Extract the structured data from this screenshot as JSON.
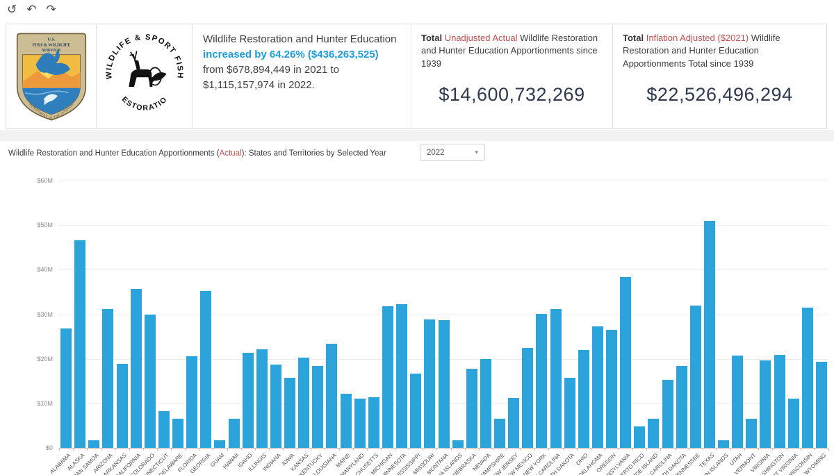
{
  "colors": {
    "bar": "#2BA3DB",
    "accent_blue": "#1E9CD7",
    "accent_red": "#C0504D",
    "kpi_value_text": "#2E3A4E"
  },
  "toolbar": {
    "reset_glyph": "↺",
    "undo_glyph": "↶",
    "redo_glyph": "↷"
  },
  "logos": {
    "usfws": {
      "line1": "U.S.",
      "line2": "FISH & WILDLIFE",
      "line3": "SERVICE",
      "arc": "DEPARTMENT OF THE INTERIOR"
    },
    "wsfr": {
      "top_arc": "WILDLIFE & SPORT FISH",
      "bottom_arc": "RESTORATION"
    }
  },
  "insight": {
    "before": "Wildlife Restoration and Hunter Education ",
    "highlight": "increased by 64.26% ($436,263,525)",
    "after": " from $678,894,449 in 2021 to $1,115,157,974 in 2022."
  },
  "kpi_unadjusted": {
    "prefix": "Total ",
    "accent": "Unadjusted Actual",
    "suffix": " Wildlife Restoration and Hunter Education Apportionments since 1939",
    "value": "$14,600,732,269"
  },
  "kpi_adjusted": {
    "prefix": "Total ",
    "accent": "Inflation Adjusted ($2021)",
    "suffix": " Wildlife Restoration and Hunter Education Apportionments Total since 1939",
    "value": "$22,526,496,294"
  },
  "chart_header": {
    "title_before": "Wildlife Restoration and Hunter Education Apportionments (",
    "title_accent": "Actual",
    "title_after": "): States and Territories by Selected Year",
    "year_dropdown": {
      "value": "2022",
      "caret_glyph": "▾"
    }
  },
  "chart_data": {
    "type": "bar",
    "title": "Wildlife Restoration and Hunter Education Apportionments (Actual): States and Territories by Selected Year",
    "selected_year": "2022",
    "unit": "USD millions",
    "bar_color": "#2BA3DB",
    "grid": true,
    "ylim": [
      0,
      60
    ],
    "yticks": [
      {
        "label": "$60M",
        "value": 60
      },
      {
        "label": "$50M",
        "value": 50
      },
      {
        "label": "$40M",
        "value": 40
      },
      {
        "label": "$30M",
        "value": 30
      },
      {
        "label": "$20M",
        "value": 20
      },
      {
        "label": "$10M",
        "value": 10
      },
      {
        "label": "$0",
        "value": 0
      }
    ],
    "categories": [
      "ALABAMA",
      "ALASKA",
      "AMERICAN SAMOA",
      "ARIZONA",
      "ARKANSAS",
      "CALIFORNIA",
      "COLORADO",
      "CONNECTICUT",
      "DELAWARE",
      "FLORIDA",
      "GEORGIA",
      "GUAM",
      "HAWAII",
      "IDAHO",
      "ILLINOIS",
      "INDIANA",
      "IOWA",
      "KANSAS",
      "KENTUCKY",
      "LOUISIANA",
      "MAINE",
      "MARYLAND",
      "MASSACHUSETTS",
      "MICHIGAN",
      "MINNESOTA",
      "MISSISSIPPI",
      "MISSOURI",
      "MONTANA",
      "N MARIANA ISLANDS",
      "NEBRASKA",
      "NEVADA",
      "NEW HAMPSHIRE",
      "NEW JERSEY",
      "NEW MEXICO",
      "NEW YORK",
      "NORTH CAROLINA",
      "NORTH DAKOTA",
      "OHIO",
      "OKLAHOMA",
      "OREGON",
      "PENNSYLVANIA",
      "PUERTO RICO",
      "RHODE ISLAND",
      "SOUTH CAROLINA",
      "SOUTH DAKOTA",
      "TENNESSEE",
      "TEXAS",
      "US VIRGIN ISLANDS",
      "UTAH",
      "VERMONT",
      "VIRGINIA",
      "WASHINGTON",
      "WEST VIRGINIA",
      "WISCONSIN",
      "WYOMING"
    ],
    "values": [
      26.8,
      46.6,
      1.7,
      31.1,
      18.9,
      35.7,
      30.0,
      8.2,
      6.6,
      20.5,
      35.2,
      1.7,
      6.6,
      21.3,
      22.2,
      18.7,
      15.8,
      20.2,
      18.4,
      23.3,
      12.1,
      11.0,
      11.3,
      31.8,
      32.3,
      16.6,
      28.9,
      28.6,
      1.7,
      17.7,
      20.0,
      6.6,
      11.2,
      22.5,
      30.1,
      31.2,
      15.8,
      21.9,
      27.2,
      26.5,
      38.4,
      4.9,
      6.6,
      15.2,
      18.4,
      31.9,
      51.0,
      1.7,
      20.7,
      6.6,
      19.6,
      20.9,
      11.1,
      31.5,
      19.3
    ]
  }
}
